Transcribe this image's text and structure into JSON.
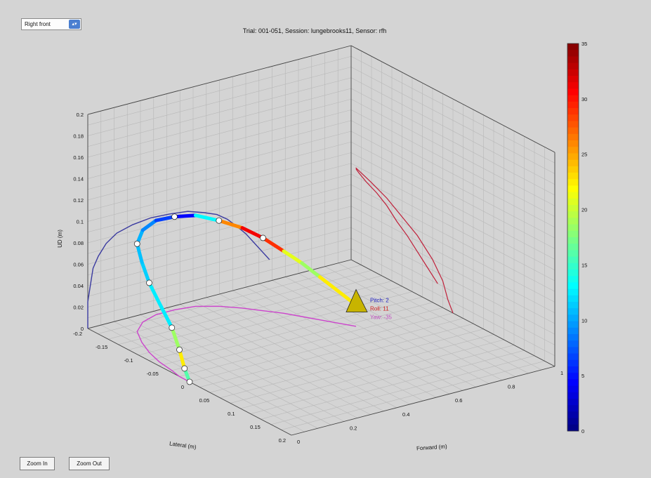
{
  "controls": {
    "sensor_select_value": "Right front",
    "zoom_in_label": "Zoom In",
    "zoom_out_label": "Zoom Out"
  },
  "chart_data": {
    "type": "line3d",
    "title": "Trial: 001-051, Session: lungebrooks11, Sensor: rfh",
    "xlabel": "Forward (m)",
    "ylabel": "Lateral (m)",
    "zlabel": "UD (m)",
    "x_ticks": [
      "0",
      "0.2",
      "0.4",
      "0.6",
      "0.8",
      "1"
    ],
    "y_ticks": [
      "-0.2",
      "-0.15",
      "-0.1",
      "-0.05",
      "0",
      "0.05",
      "0.1",
      "0.15",
      "0.2"
    ],
    "z_ticks": [
      "0",
      "0.02",
      "0.04",
      "0.06",
      "0.08",
      "0.1",
      "0.12",
      "0.14",
      "0.16",
      "0.18",
      "0.2"
    ],
    "xlim": [
      0,
      1
    ],
    "ylim": [
      -0.2,
      0.2
    ],
    "zlim": [
      0,
      0.2
    ],
    "grid": true,
    "colorbar": {
      "ticks": [
        "0",
        "5",
        "10",
        "15",
        "20",
        "25",
        "30",
        "35"
      ],
      "range": [
        0,
        35
      ],
      "colormap": "jet"
    },
    "trajectory": {
      "name": "speed-coloured path",
      "points": [
        {
          "x": 0.0,
          "y": 0.0,
          "z": 0.0,
          "c": 12
        },
        {
          "x": 0.0,
          "y": -0.01,
          "z": 0.01,
          "c": 20
        },
        {
          "x": 0.0,
          "y": -0.02,
          "z": 0.025,
          "c": 25
        },
        {
          "x": 0.01,
          "y": -0.04,
          "z": 0.04,
          "c": 12
        },
        {
          "x": 0.02,
          "y": -0.07,
          "z": 0.055,
          "c": 13
        },
        {
          "x": 0.04,
          "y": -0.1,
          "z": 0.065,
          "c": 12
        },
        {
          "x": 0.07,
          "y": -0.13,
          "z": 0.075,
          "c": 11
        },
        {
          "x": 0.11,
          "y": -0.16,
          "z": 0.082,
          "c": 11
        },
        {
          "x": 0.17,
          "y": -0.18,
          "z": 0.086,
          "c": 10
        },
        {
          "x": 0.24,
          "y": -0.19,
          "z": 0.088,
          "c": 8
        },
        {
          "x": 0.31,
          "y": -0.19,
          "z": 0.087,
          "c": 5
        },
        {
          "x": 0.38,
          "y": -0.185,
          "z": 0.085,
          "c": 4
        },
        {
          "x": 0.44,
          "y": -0.17,
          "z": 0.08,
          "c": 22
        },
        {
          "x": 0.49,
          "y": -0.15,
          "z": 0.075,
          "c": 30
        },
        {
          "x": 0.53,
          "y": -0.13,
          "z": 0.068,
          "c": 32
        },
        {
          "x": 0.57,
          "y": -0.11,
          "z": 0.058,
          "c": 26
        },
        {
          "x": 0.6,
          "y": -0.09,
          "z": 0.05,
          "c": 16
        },
        {
          "x": 0.63,
          "y": -0.07,
          "z": 0.04,
          "c": 21
        },
        {
          "x": 0.66,
          "y": -0.05,
          "z": 0.03,
          "c": 24
        },
        {
          "x": 0.69,
          "y": -0.03,
          "z": 0.02,
          "c": 21
        }
      ],
      "markers": [
        0.0,
        0.05,
        0.1,
        0.15,
        0.25,
        0.35,
        0.5,
        0.65,
        0.75
      ]
    },
    "projections": [
      {
        "plane": "back wall (forward–up)",
        "color": "#3a3aa0"
      },
      {
        "plane": "floor (forward–lateral)",
        "color": "#cc44cc"
      },
      {
        "plane": "side wall (lateral–up)",
        "color": "#c0203a"
      }
    ],
    "orientation_legend": [
      {
        "label": "Pitch: 2",
        "color": "#2020c0"
      },
      {
        "label": "Roll: 11",
        "color": "#d02020"
      },
      {
        "label": "Yaw: -35",
        "color": "#c050c0"
      }
    ]
  }
}
